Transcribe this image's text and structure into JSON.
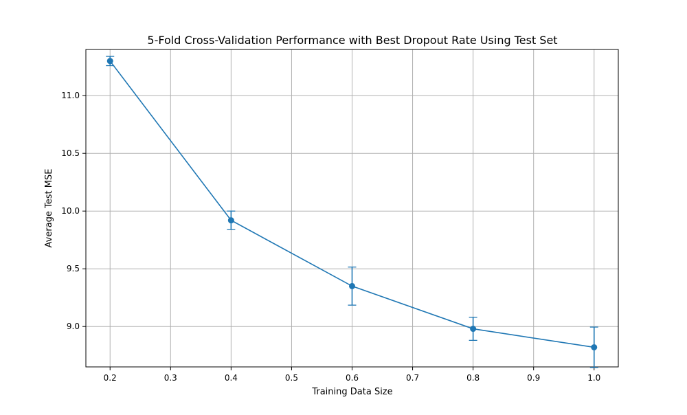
{
  "chart_data": {
    "type": "line",
    "title": "5-Fold Cross-Validation Performance with Best Dropout Rate Using Test Set",
    "xlabel": "Training Data Size",
    "ylabel": "Average Test MSE",
    "xlim": [
      0.16,
      1.04
    ],
    "ylim": [
      8.65,
      11.4
    ],
    "x_ticks": [
      0.2,
      0.3,
      0.4,
      0.5,
      0.6,
      0.7,
      0.8,
      0.9,
      1.0
    ],
    "x_tick_labels": [
      "0.2",
      "0.3",
      "0.4",
      "0.5",
      "0.6",
      "0.7",
      "0.8",
      "0.9",
      "1.0"
    ],
    "y_ticks": [
      9.0,
      9.5,
      10.0,
      10.5,
      11.0
    ],
    "y_tick_labels": [
      "9.0",
      "9.5",
      "10.0",
      "10.5",
      "11.0"
    ],
    "grid": true,
    "legend": false,
    "series": [
      {
        "color": "#1f77b4",
        "marker": "circle",
        "x": [
          0.2,
          0.4,
          0.6,
          0.8,
          1.0
        ],
        "y": [
          11.3,
          9.92,
          9.35,
          8.98,
          8.82
        ],
        "error": [
          0.04,
          0.08,
          0.165,
          0.1,
          0.175
        ]
      }
    ]
  }
}
